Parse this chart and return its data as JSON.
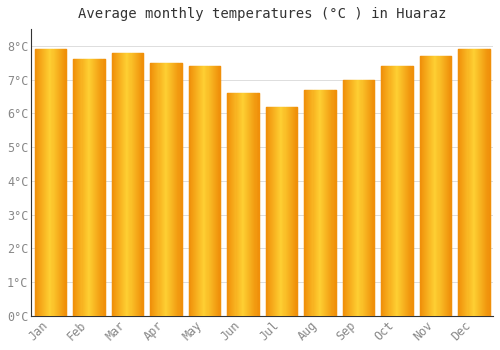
{
  "title": "Average monthly temperatures (°C ) in Huaraz",
  "months": [
    "Jan",
    "Feb",
    "Mar",
    "Apr",
    "May",
    "Jun",
    "Jul",
    "Aug",
    "Sep",
    "Oct",
    "Nov",
    "Dec"
  ],
  "values": [
    7.9,
    7.6,
    7.8,
    7.5,
    7.4,
    6.6,
    6.2,
    6.7,
    7.0,
    7.4,
    7.7,
    7.9
  ],
  "bar_color_center": "#FFD033",
  "bar_color_edge": "#F0900A",
  "background_color": "#FFFFFF",
  "plot_bg_color": "#FFFFFF",
  "grid_color": "#DDDDDD",
  "ylim": [
    0,
    8.5
  ],
  "yticks": [
    0,
    1,
    2,
    3,
    4,
    5,
    6,
    7,
    8
  ],
  "ytick_labels": [
    "0°C",
    "1°C",
    "2°C",
    "3°C",
    "4°C",
    "5°C",
    "6°C",
    "7°C",
    "8°C"
  ],
  "title_fontsize": 10,
  "tick_fontsize": 8.5,
  "tick_color": "#888888",
  "spine_color": "#333333",
  "bar_width": 0.82
}
